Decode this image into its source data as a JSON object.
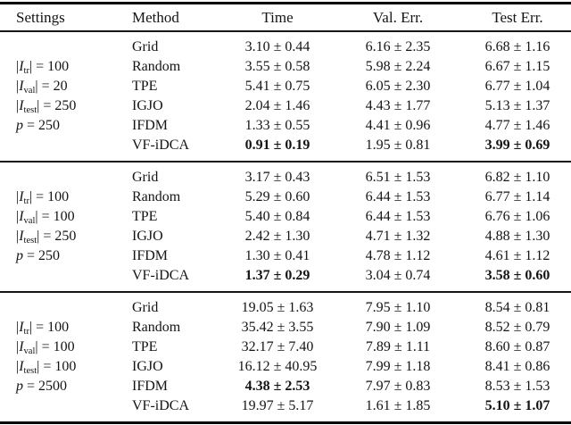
{
  "page": {
    "background": "#ffffff",
    "text_color": "#141414",
    "rule_color": "#000000"
  },
  "table": {
    "headers": [
      "Settings",
      "Method",
      "Time",
      "Val. Err.",
      "Test Err."
    ],
    "blocks": [
      {
        "settings": [
          {
            "bar": "|",
            "var": "I",
            "sub": "tr",
            "eq": "= 100"
          },
          {
            "bar": "|",
            "var": "I",
            "sub": "val",
            "eq": "= 20"
          },
          {
            "bar": "|",
            "var": "I",
            "sub": "test",
            "eq": "= 250"
          },
          {
            "bar": "",
            "var": "p",
            "sub": "",
            "eq": "= 250"
          }
        ],
        "rows": [
          {
            "method": "Grid",
            "time": "3.10 ± 0.44",
            "val": "6.16 ± 2.35",
            "test": "6.68 ± 1.16",
            "bold": []
          },
          {
            "method": "Random",
            "time": "3.55 ± 0.58",
            "val": "5.98 ± 2.24",
            "test": "6.67 ± 1.15",
            "bold": []
          },
          {
            "method": "TPE",
            "time": "5.41 ± 0.75",
            "val": "6.05 ± 2.30",
            "test": "6.77 ± 1.04",
            "bold": []
          },
          {
            "method": "IGJO",
            "time": "2.04 ± 1.46",
            "val": "4.43 ± 1.77",
            "test": "5.13 ± 1.37",
            "bold": []
          },
          {
            "method": "IFDM",
            "time": "1.33 ± 0.55",
            "val": "4.41 ± 0.96",
            "test": "4.77 ± 1.46",
            "bold": []
          },
          {
            "method": "VF-iDCA",
            "time": "0.91 ± 0.19",
            "val": "1.95 ± 0.81",
            "test": "3.99 ± 0.69",
            "bold": [
              "time",
              "test"
            ]
          }
        ]
      },
      {
        "settings": [
          {
            "bar": "|",
            "var": "I",
            "sub": "tr",
            "eq": "= 100"
          },
          {
            "bar": "|",
            "var": "I",
            "sub": "val",
            "eq": "= 100"
          },
          {
            "bar": "|",
            "var": "I",
            "sub": "test",
            "eq": "= 250"
          },
          {
            "bar": "",
            "var": "p",
            "sub": "",
            "eq": "= 250"
          }
        ],
        "rows": [
          {
            "method": "Grid",
            "time": "3.17 ± 0.43",
            "val": "6.51 ± 1.53",
            "test": "6.82 ± 1.10",
            "bold": []
          },
          {
            "method": "Random",
            "time": "5.29 ± 0.60",
            "val": "6.44 ± 1.53",
            "test": "6.77 ± 1.14",
            "bold": []
          },
          {
            "method": "TPE",
            "time": "5.40 ± 0.84",
            "val": "6.44 ± 1.53",
            "test": "6.76 ± 1.06",
            "bold": []
          },
          {
            "method": "IGJO",
            "time": "2.42 ± 1.30",
            "val": "4.71 ± 1.32",
            "test": "4.88 ± 1.30",
            "bold": []
          },
          {
            "method": "IFDM",
            "time": "1.30 ± 0.41",
            "val": "4.78 ± 1.12",
            "test": "4.61 ± 1.12",
            "bold": []
          },
          {
            "method": "VF-iDCA",
            "time": "1.37 ± 0.29",
            "val": "3.04 ± 0.74",
            "test": "3.58 ± 0.60",
            "bold": [
              "time",
              "test"
            ]
          }
        ]
      },
      {
        "settings": [
          {
            "bar": "|",
            "var": "I",
            "sub": "tr",
            "eq": "= 100"
          },
          {
            "bar": "|",
            "var": "I",
            "sub": "val",
            "eq": "= 100"
          },
          {
            "bar": "|",
            "var": "I",
            "sub": "test",
            "eq": "= 100"
          },
          {
            "bar": "",
            "var": "p",
            "sub": "",
            "eq": "= 2500"
          }
        ],
        "rows": [
          {
            "method": "Grid",
            "time": "19.05 ± 1.63",
            "val": "7.95 ± 1.10",
            "test": "8.54 ± 0.81",
            "bold": []
          },
          {
            "method": "Random",
            "time": "35.42 ± 3.55",
            "val": "7.90 ± 1.09",
            "test": "8.52 ± 0.79",
            "bold": []
          },
          {
            "method": "TPE",
            "time": "32.17 ± 7.40",
            "val": "7.89 ± 1.11",
            "test": "8.60 ± 0.87",
            "bold": []
          },
          {
            "method": "IGJO",
            "time": "16.12 ± 40.95",
            "val": "7.99 ± 1.18",
            "test": "8.41 ± 0.86",
            "bold": []
          },
          {
            "method": "IFDM",
            "time": "4.38 ± 2.53",
            "val": "7.97 ± 0.83",
            "test": "8.53 ± 1.53",
            "bold": [
              "time"
            ]
          },
          {
            "method": "VF-iDCA",
            "time": "19.97 ± 5.17",
            "val": "1.61 ± 1.85",
            "test": "5.10 ± 1.07",
            "bold": [
              "test"
            ]
          }
        ]
      }
    ]
  }
}
